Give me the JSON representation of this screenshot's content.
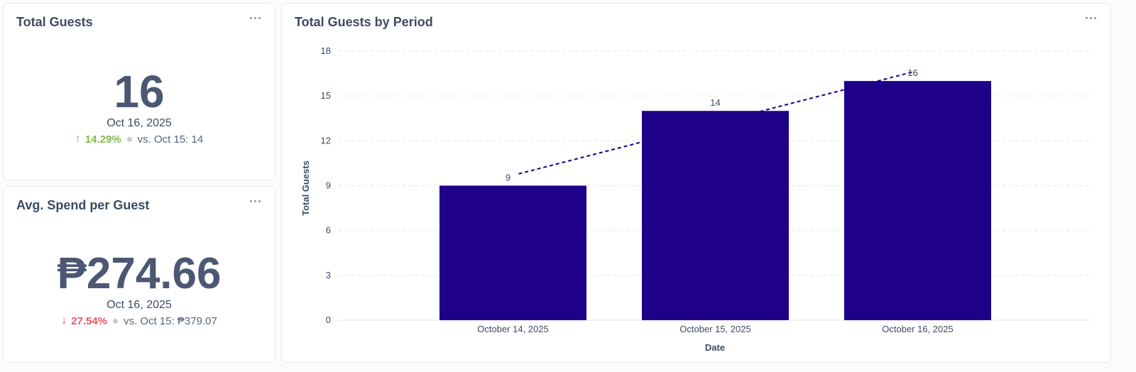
{
  "cards": {
    "total_guests": {
      "title": "Total Guests",
      "value": "16",
      "date": "Oct 16, 2025",
      "change_pct": "14.29%",
      "change_direction": "up",
      "compare_text": "vs. Oct 15: 14",
      "up_color": "#84bb4c"
    },
    "avg_spend": {
      "title": "Avg. Spend per Guest",
      "value": "₱274.66",
      "date": "Oct 16, 2025",
      "change_pct": "27.54%",
      "change_direction": "down",
      "compare_text": "vs. Oct 15: ₱379.07",
      "down_color": "#ed5565"
    },
    "by_period": {
      "title": "Total Guests by Period"
    }
  },
  "icons": {
    "menu": "ellipsis-icon",
    "up": "arrow-up-icon",
    "down": "arrow-down-icon"
  },
  "chart_data": {
    "type": "bar",
    "categories": [
      "October 14, 2025",
      "October 15, 2025",
      "October 16, 2025"
    ],
    "values": [
      9,
      14,
      16
    ],
    "xlabel": "Date",
    "ylabel": "Total Guests",
    "ylim": [
      0,
      18
    ],
    "yticks": [
      0,
      3,
      6,
      9,
      12,
      15,
      18
    ],
    "grid": true,
    "trendline": "dashed",
    "bar_color": "#1e0089"
  }
}
